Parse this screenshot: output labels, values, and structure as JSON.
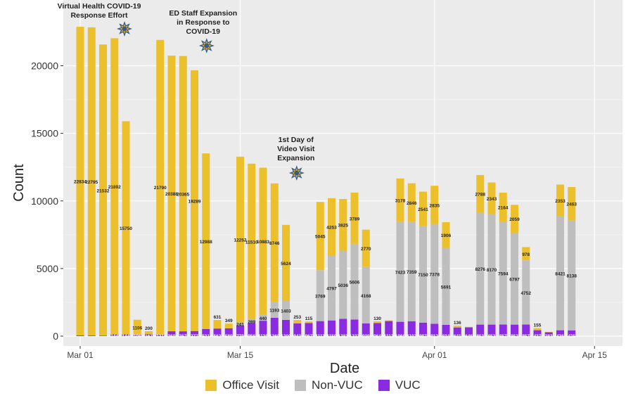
{
  "chart_data": {
    "type": "bar",
    "stacked": true,
    "xlabel": "Date",
    "ylabel": "Count",
    "ylim": [
      0,
      24000
    ],
    "yticks": [
      0,
      5000,
      10000,
      15000,
      20000
    ],
    "xticks": [
      {
        "day": 1,
        "label": "Mar 01"
      },
      {
        "day": 15,
        "label": "Mar 15"
      },
      {
        "day": 32,
        "label": "Apr 01"
      },
      {
        "day": 46,
        "label": "Apr 15"
      }
    ],
    "grid": true,
    "legend_position": "bottom",
    "colors": {
      "Office Visit": "#ecc02b",
      "Non-VUC": "#bebebe",
      "VUC": "#8a2be2",
      "background": "#ebebeb"
    },
    "series": [
      {
        "name": "Office Visit",
        "label_values": [
          "22834",
          "22795",
          "21532",
          "21892",
          "15750",
          "1106",
          "200",
          "21790",
          "20388",
          "20365",
          "19289",
          "12988",
          "631",
          "349",
          "12252",
          "11510",
          "10883",
          "8746",
          "5624",
          "253",
          "115",
          "5045",
          "4253",
          "3825",
          "3789",
          "2770",
          "130",
          "",
          "3178",
          "2846",
          "2541",
          "2835",
          "1906",
          "136",
          "",
          "2788",
          "2343",
          "2164",
          "2059",
          "978",
          "155",
          "",
          "2353",
          "2463"
        ],
        "values": [
          22834,
          22795,
          21532,
          21892,
          15750,
          1106,
          200,
          21790,
          20388,
          20365,
          19289,
          12988,
          631,
          349,
          12252,
          11510,
          10883,
          8746,
          5624,
          253,
          115,
          5045,
          4253,
          3825,
          3789,
          2770,
          130,
          60,
          3178,
          2846,
          2541,
          2835,
          1906,
          136,
          40,
          2788,
          2343,
          2164,
          2059,
          978,
          155,
          30,
          2353,
          2463
        ]
      },
      {
        "name": "Non-VUC",
        "label_values": [
          "",
          "",
          "",
          "",
          "",
          "",
          "",
          "",
          "",
          "",
          "",
          "",
          "",
          "",
          "241",
          "289",
          "440",
          "1193",
          "1403",
          "",
          "",
          "3769",
          "4797",
          "5036",
          "5606",
          "4168",
          "",
          "",
          "7423",
          "7359",
          "7150",
          "7378",
          "5691",
          "",
          "",
          "8276",
          "8170",
          "7594",
          "6797",
          "4752",
          "",
          "",
          "8421",
          "8138"
        ],
        "values": [
          0,
          0,
          0,
          0,
          0,
          0,
          0,
          0,
          0,
          0,
          0,
          0,
          0,
          0,
          241,
          289,
          440,
          1193,
          1403,
          0,
          0,
          3769,
          4797,
          5036,
          5606,
          4168,
          0,
          0,
          7423,
          7359,
          7150,
          7378,
          5691,
          0,
          0,
          8276,
          8170,
          7594,
          6797,
          4752,
          0,
          0,
          8421,
          8138
        ]
      },
      {
        "name": "VUC",
        "label_values": [
          "",
          "",
          "",
          "144",
          "144",
          "106",
          "167",
          "121",
          "360",
          "357",
          "377",
          "531",
          "562",
          "580",
          "779",
          "956",
          "1139",
          "1360",
          "1200",
          "943",
          "967",
          "1111",
          "1159",
          "1283",
          "1223",
          "939",
          "964",
          "1113",
          "1060",
          "1102",
          "997",
          "912",
          "834",
          "641",
          "646",
          "853",
          "853",
          "857",
          "852",
          "857",
          "437",
          "283",
          "436",
          "425"
        ],
        "values": [
          50,
          45,
          40,
          144,
          144,
          106,
          167,
          121,
          360,
          357,
          377,
          531,
          562,
          580,
          779,
          956,
          1139,
          1360,
          1200,
          943,
          967,
          1111,
          1159,
          1283,
          1223,
          939,
          964,
          1113,
          1060,
          1102,
          997,
          912,
          834,
          641,
          646,
          853,
          853,
          857,
          852,
          857,
          437,
          283,
          436,
          425
        ]
      }
    ],
    "annotations": [
      {
        "text": "Virtual Health COVID-19\nResponse Effort",
        "day": 5
      },
      {
        "text": "ED Staff Expansion\nin Response to\nCOVID-19",
        "day": 12
      },
      {
        "text": "1st Day of\nVideo Visit\nExpansion",
        "day": 20
      }
    ]
  }
}
